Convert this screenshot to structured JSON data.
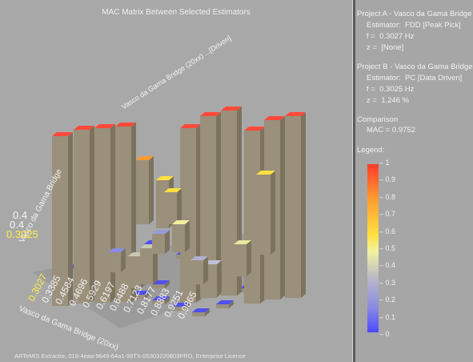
{
  "plot": {
    "title": "MAC Matrix Between Selected Estimators",
    "footer": "ARTeMIS Extractor, 019-4eaa-9649-64a1-99TX-05303220803PRO, Enterprise License",
    "axis_b_label": "Vasco da Gama Bridge (20xx) ...[Driven]",
    "axis_a_label": "Vasco da Gama Bridge",
    "front_ticks": [
      "0.3027",
      "0.3385",
      "0.4584",
      "0.4696",
      "0.5929",
      "0.6197",
      "0.6488",
      "0.7123",
      "0.8177",
      "0.8883",
      "0.9251",
      "0.9865"
    ],
    "left_ticks": [
      "0.3025",
      "0.4",
      "0.4"
    ]
  },
  "panel": {
    "project_a": "Project A - Vasco da Gama Bridge",
    "estimator_a_key": "Estimator:",
    "estimator_a": "FDD [Peak Pick]",
    "fa_key": "f =",
    "fa": "0.3027 Hz",
    "za_key": "z =",
    "za": "[None]",
    "project_b": "Project B - Vasco da Gama Bridge",
    "estimator_b_key": "Estimator:",
    "estimator_b": "PC [Data Driven]",
    "fb_key": "f =",
    "fb": "0.3025 Hz",
    "zb_key": "z =",
    "zb": "1.246 %",
    "comparison": "Comparison",
    "mac": "MAC = 0.9752",
    "legend_title": "Legend:",
    "legend_ticks": [
      "1",
      "0.9",
      "0.8",
      "0.7",
      "0.6",
      "0.5",
      "0.4",
      "0.3",
      "0.2",
      "0.1",
      "0"
    ]
  },
  "colors": {
    "high": "#ff3a2a",
    "mid": "#ffe040",
    "low": "#4a4aff",
    "bar_side": "#8c8270"
  }
}
